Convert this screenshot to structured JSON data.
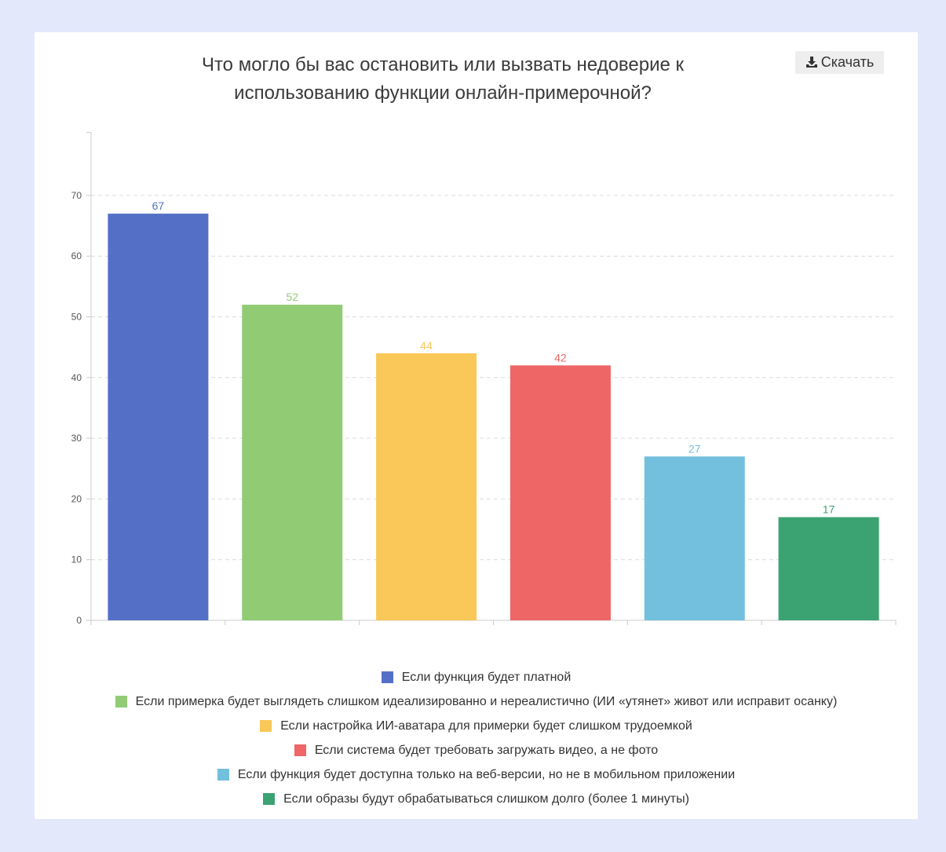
{
  "header": {
    "title_line1": "Что могло бы вас остановить или вызвать недоверие к",
    "title_line2": "использованию функции онлайн-примерочной?",
    "download_label": "Скачать",
    "download_icon": "download-icon"
  },
  "chart_data": {
    "type": "bar",
    "title": "Что могло бы вас остановить или вызвать недоверие к использованию функции онлайн-примерочной?",
    "xlabel": "",
    "ylabel": "",
    "ylim": [
      0,
      80
    ],
    "yticks": [
      0,
      10,
      20,
      30,
      40,
      50,
      60,
      70
    ],
    "grid": true,
    "legend_position": "bottom",
    "categories": [
      "Если функция будет платной",
      "Если примерка будет выглядеть слишком идеализированно и нереалистично (ИИ «утянет» живот или исправит осанку)",
      "Если настройка ИИ-аватара для примерки будет слишком трудоемкой",
      "Если система будет требовать загружать видео, а не фото",
      "Если функция будет доступна только на веб-версии, но не в мобильном приложении",
      "Если образы будут обрабатываться слишком долго (более 1 минуты)"
    ],
    "values": [
      67,
      52,
      44,
      42,
      27,
      17
    ],
    "colors": [
      "#5470c6",
      "#91cc75",
      "#fac858",
      "#ee6666",
      "#73c0de",
      "#3ba272"
    ]
  }
}
